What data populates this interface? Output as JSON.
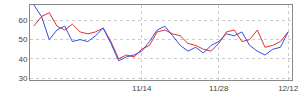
{
  "chart_data": {
    "type": "line",
    "categories": [
      null,
      null,
      null,
      null,
      null,
      null,
      null,
      null,
      null,
      null,
      null,
      null,
      null,
      null,
      "11/14",
      null,
      null,
      null,
      null,
      null,
      null,
      null,
      null,
      null,
      "11/28",
      null,
      null,
      null,
      null,
      null,
      null,
      null,
      null,
      "12/12"
    ],
    "series": [
      {
        "color": "#e03030",
        "values": [
          57,
          62,
          64,
          57,
          55,
          58,
          54,
          53,
          54,
          56,
          49,
          40,
          42,
          41,
          45,
          47,
          54,
          55,
          53,
          52,
          48,
          47,
          45,
          44,
          48,
          54,
          55,
          49,
          50,
          55,
          46,
          47,
          49,
          54
        ]
      },
      {
        "color": "#3050e0",
        "values": [
          68,
          62,
          50,
          55,
          57,
          49,
          50,
          49,
          52,
          56,
          48,
          39,
          41,
          42,
          44,
          49,
          55,
          57,
          52,
          47,
          44,
          46,
          43,
          47,
          49,
          53,
          52,
          54,
          47,
          44,
          42,
          45,
          46,
          54
        ]
      }
    ],
    "ylim": [
      29,
      68
    ],
    "yticks": [
      30,
      40,
      50,
      60
    ],
    "grid": true
  }
}
